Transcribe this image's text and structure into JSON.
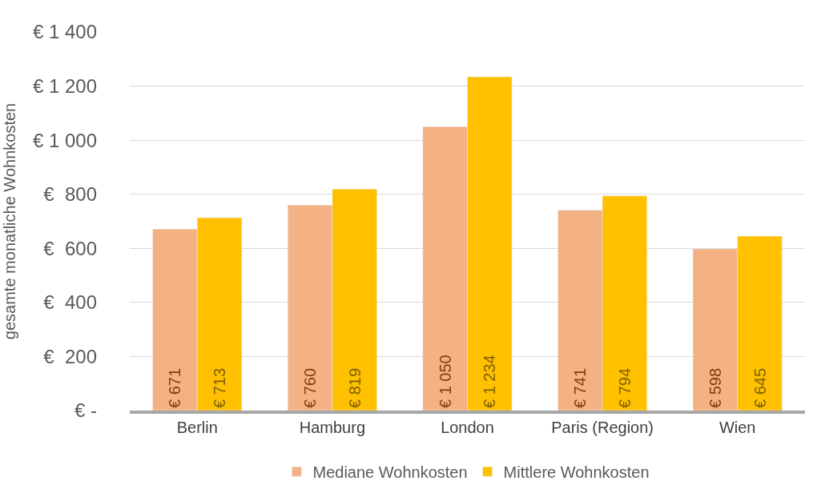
{
  "chart_data": {
    "type": "bar",
    "ylabel": "gesamte monatliche Wohnkosten",
    "categories": [
      "Berlin",
      "Hamburg",
      "London",
      "Paris (Region)",
      "Wien"
    ],
    "series": [
      {
        "name": "Mediane Wohnkosten",
        "color": "#f4b183",
        "values": [
          671,
          760,
          1050,
          741,
          598
        ],
        "value_labels": [
          "€ 671",
          "€ 760",
          "€ 1 050",
          "€ 741",
          "€ 598"
        ]
      },
      {
        "name": "Mittlere Wohnkosten",
        "color": "#ffc000",
        "values": [
          713,
          819,
          1234,
          794,
          645
        ],
        "value_labels": [
          "€ 713",
          "€ 819",
          "€ 1 234",
          "€ 794",
          "€ 645"
        ]
      }
    ],
    "ylim": [
      0,
      1400
    ],
    "yticks": [
      {
        "value": 0,
        "label": "€ -"
      },
      {
        "value": 200,
        "label": "€  200"
      },
      {
        "value": 400,
        "label": "€  400"
      },
      {
        "value": 600,
        "label": "€  600"
      },
      {
        "value": 800,
        "label": "€  800"
      },
      {
        "value": 1000,
        "label": "€ 1 000"
      },
      {
        "value": 1200,
        "label": "€ 1 200"
      },
      {
        "value": 1400,
        "label": "€ 1 400"
      }
    ],
    "grid": "y",
    "legend": "bottom"
  }
}
